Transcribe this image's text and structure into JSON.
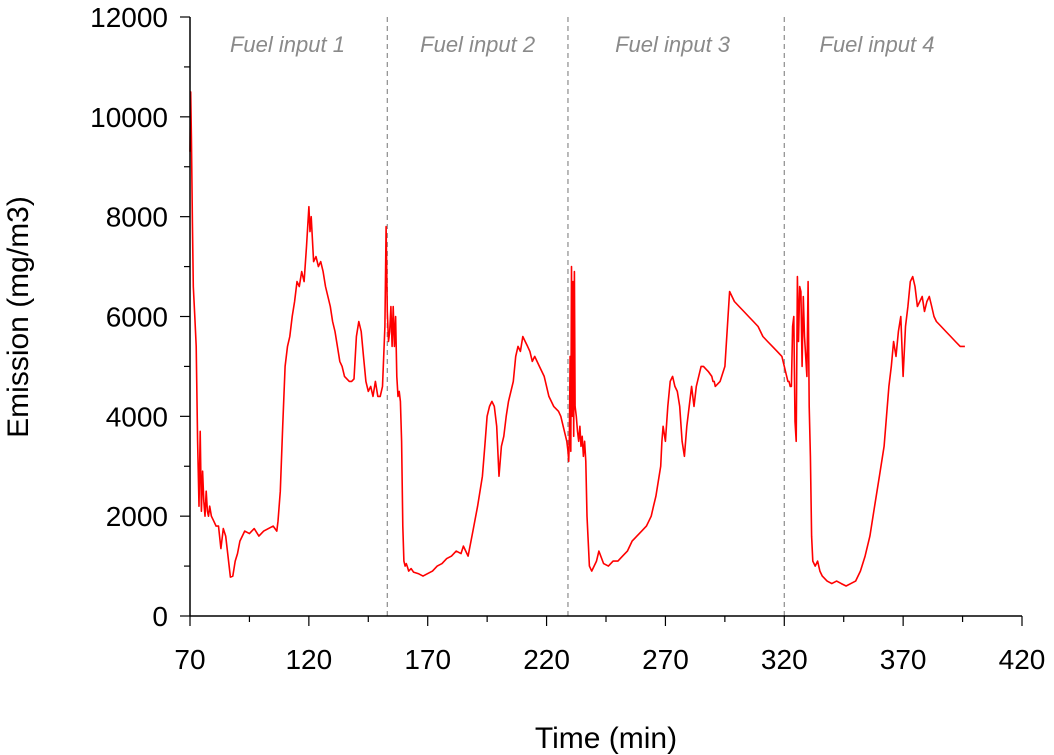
{
  "chart_data": {
    "type": "line",
    "title": "",
    "xlabel": "Time (min)",
    "ylabel": "Emission (mg/m3)",
    "xlim": [
      70,
      420
    ],
    "ylim": [
      0,
      12000
    ],
    "x_ticks": [
      70,
      120,
      170,
      220,
      270,
      320,
      370,
      420
    ],
    "y_ticks": [
      0,
      2000,
      4000,
      6000,
      8000,
      10000,
      12000
    ],
    "grid": false,
    "colors": {
      "series": "#ff0000",
      "divider": "#8c8c8c",
      "annotation": "#8a8a8a"
    },
    "dividers": [
      153,
      229,
      320
    ],
    "regions": [
      {
        "label": "Fuel input 1",
        "x": 111
      },
      {
        "label": "Fuel input 2",
        "x": 191
      },
      {
        "label": "Fuel input 3",
        "x": 273
      },
      {
        "label": "Fuel input 4",
        "x": 359
      }
    ],
    "series": [
      {
        "name": "",
        "x": [
          70.0,
          70.3,
          70.6,
          71.0,
          71.4,
          72.0,
          72.6,
          73.2,
          73.8,
          74.3,
          74.8,
          75.3,
          75.8,
          76.3,
          76.8,
          77.3,
          77.8,
          78.3,
          79.0,
          80.0,
          81.0,
          82.0,
          83.0,
          84.0,
          85.0,
          86.0,
          87.0,
          88.0,
          89.0,
          90.0,
          91.0,
          92.0,
          93.0,
          95.0,
          97.0,
          99.0,
          101.0,
          103.0,
          105.0,
          106.5,
          107.0,
          108.0,
          109.0,
          110.0,
          111.0,
          112.0,
          113.0,
          114.0,
          115.0,
          116.0,
          117.0,
          118.0,
          119.0,
          120.0,
          120.5,
          121.0,
          122.0,
          123.0,
          124.0,
          125.0,
          126.0,
          127.0,
          128.0,
          129.0,
          130.0,
          131.0,
          132.0,
          133.0,
          134.0,
          135.0,
          136.0,
          137.0,
          138.0,
          139.0,
          140.0,
          141.0,
          142.0,
          143.0,
          144.0,
          145.0,
          146.0,
          147.0,
          148.0,
          149.0,
          150.0,
          151.0,
          152.0,
          152.5,
          153.0,
          153.5,
          154.0,
          154.5,
          155.0,
          155.5,
          156.0,
          156.5,
          157.0,
          157.5,
          158.0,
          158.5,
          159.0,
          159.5,
          160.0,
          160.5,
          161.0,
          161.5,
          162.0,
          163.0,
          164.0,
          166.0,
          168.0,
          170.0,
          172.0,
          174.0,
          176.0,
          178.0,
          180.0,
          182.0,
          184.0,
          185.0,
          187.0,
          189.0,
          191.0,
          193.0,
          194.0,
          195.0,
          196.0,
          197.0,
          198.0,
          199.0,
          200.0,
          201.0,
          202.0,
          203.0,
          204.0,
          205.0,
          206.0,
          207.0,
          208.0,
          209.0,
          210.0,
          211.0,
          212.0,
          213.0,
          214.0,
          215.0,
          217.0,
          219.0,
          221.0,
          223.0,
          225.0,
          226.0,
          227.0,
          228.0,
          228.5,
          229.0,
          229.3,
          229.6,
          229.9,
          230.2,
          230.5,
          230.8,
          231.1,
          231.4,
          231.7,
          232.0,
          232.5,
          233.0,
          233.5,
          234.0,
          234.5,
          235.0,
          235.5,
          236.0,
          236.5,
          237.0,
          237.5,
          238.0,
          239.0,
          240.0,
          241.0,
          242.0,
          244.0,
          246.0,
          248.0,
          250.0,
          252.0,
          254.0,
          256.0,
          258.0,
          260.0,
          262.0,
          263.0,
          264.0,
          265.0,
          266.0,
          267.0,
          268.0,
          268.5,
          269.0,
          270.0,
          271.0,
          272.0,
          273.0,
          274.0,
          275.0,
          276.0,
          277.0,
          278.0,
          279.0,
          280.0,
          281.0,
          282.0,
          283.0,
          284.0,
          285.0,
          286.0,
          287.0,
          288.0,
          289.5,
          290.0,
          290.5,
          291.0,
          293.0,
          295.0,
          297.0,
          299.0,
          301.0,
          303.0,
          305.0,
          307.0,
          309.0,
          311.0,
          313.0,
          315.0,
          317.0,
          319.0,
          320.0,
          320.5,
          321.0,
          321.5,
          322.0,
          322.5,
          323.0,
          323.5,
          324.0,
          324.5,
          325.0,
          325.5,
          326.0,
          326.5,
          327.0,
          327.5,
          328.0,
          328.5,
          329.0,
          329.5,
          330.0,
          330.5,
          331.0,
          331.5,
          332.0,
          333.0,
          334.0,
          335.0,
          336.0,
          338.0,
          340.0,
          342.0,
          344.0,
          346.0,
          348.0,
          350.0,
          352.0,
          354.0,
          356.0,
          358.0,
          360.0,
          362.0,
          363.0,
          364.0,
          365.0,
          366.0,
          367.0,
          368.0,
          369.0,
          370.0,
          371.0,
          372.0,
          373.0,
          374.0,
          375.0,
          376.0,
          377.0,
          378.0,
          379.0,
          380.0,
          381.0,
          382.0,
          383.0,
          384.0,
          386.0,
          388.0,
          390.0,
          392.0,
          394.0,
          396.0
        ],
        "y": [
          9300,
          10500,
          9600,
          7900,
          6600,
          6000,
          5400,
          3500,
          2200,
          3700,
          2100,
          2900,
          2300,
          2000,
          2500,
          2100,
          2000,
          2200,
          2000,
          1900,
          1800,
          1800,
          1350,
          1750,
          1600,
          1200,
          780,
          800,
          1100,
          1250,
          1500,
          1600,
          1700,
          1650,
          1750,
          1600,
          1700,
          1750,
          1800,
          1700,
          1900,
          2500,
          3800,
          5000,
          5400,
          5600,
          6000,
          6300,
          6700,
          6600,
          6900,
          6700,
          7400,
          8200,
          7700,
          8000,
          7100,
          7200,
          7000,
          7100,
          6900,
          6600,
          6400,
          6200,
          5900,
          5700,
          5400,
          5100,
          5000,
          4800,
          4750,
          4700,
          4700,
          4750,
          5600,
          5900,
          5700,
          5200,
          4700,
          4500,
          4600,
          4400,
          4700,
          4400,
          4400,
          4600,
          5800,
          7800,
          6100,
          5500,
          5700,
          6200,
          5400,
          6200,
          5400,
          6000,
          4800,
          4400,
          4500,
          4300,
          3500,
          1800,
          1100,
          1000,
          1050,
          980,
          900,
          950,
          880,
          850,
          800,
          850,
          900,
          1000,
          1050,
          1150,
          1200,
          1300,
          1250,
          1400,
          1200,
          1700,
          2200,
          2800,
          3400,
          4000,
          4200,
          4300,
          4200,
          3800,
          2800,
          3400,
          3600,
          4000,
          4300,
          4500,
          4700,
          5200,
          5400,
          5300,
          5600,
          5500,
          5400,
          5300,
          5100,
          5200,
          5000,
          4800,
          4400,
          4200,
          4100,
          4000,
          3800,
          3600,
          3500,
          3300,
          3100,
          3600,
          5200,
          3300,
          7000,
          4000,
          6700,
          3600,
          6900,
          4200,
          4000,
          3700,
          3500,
          3800,
          3400,
          3600,
          3200,
          3500,
          3100,
          2000,
          1500,
          1000,
          900,
          1000,
          1100,
          1300,
          1050,
          1000,
          1100,
          1100,
          1200,
          1300,
          1500,
          1600,
          1700,
          1800,
          1900,
          2000,
          2200,
          2400,
          2700,
          3000,
          3500,
          3800,
          3500,
          4200,
          4700,
          4800,
          4600,
          4500,
          4200,
          3500,
          3200,
          3800,
          4200,
          4600,
          4200,
          4600,
          4800,
          5000,
          5000,
          4950,
          4900,
          4800,
          4700,
          4700,
          4600,
          4700,
          5000,
          6500,
          6300,
          6200,
          6100,
          6000,
          5900,
          5800,
          5600,
          5500,
          5400,
          5300,
          5200,
          5000,
          4900,
          4800,
          4700,
          4700,
          4600,
          4600,
          5800,
          6000,
          3900,
          3500,
          6800,
          5500,
          6600,
          6500,
          5000,
          6400,
          5600,
          5200,
          4800,
          6700,
          4200,
          3200,
          1600,
          1100,
          1000,
          1100,
          900,
          800,
          700,
          650,
          700,
          650,
          600,
          650,
          700,
          900,
          1200,
          1600,
          2200,
          2800,
          3400,
          4000,
          4600,
          5000,
          5500,
          5200,
          5700,
          6000,
          4800,
          5800,
          6200,
          6700,
          6800,
          6600,
          6200,
          6300,
          6400,
          6100,
          6300,
          6400,
          6200,
          6000,
          5900,
          5800,
          5700,
          5600,
          5500,
          5400,
          5400
        ]
      }
    ]
  }
}
